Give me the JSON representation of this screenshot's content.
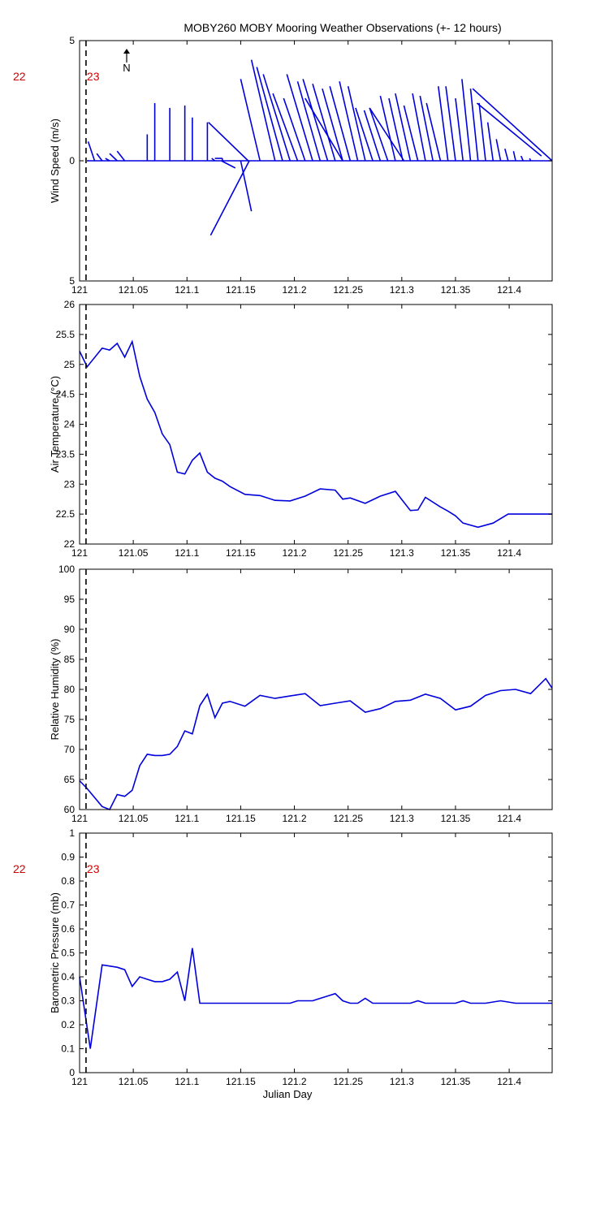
{
  "title": "MOBY260 MOBY Mooring Weather Observations (+- 12 hours)",
  "colors": {
    "series": "#0000dd",
    "hour_label": "#cc0000",
    "axis": "#000000"
  },
  "north_label": "N",
  "chart_data": [
    {
      "type": "vector",
      "name": "wind",
      "ylabel": "Wind Speed (m/s)",
      "xlabel": "Julian Day",
      "xlim": [
        121,
        121.44
      ],
      "ylim": [
        -5,
        5
      ],
      "yticks": [
        -5,
        0,
        5
      ],
      "ytick_labels": [
        "5",
        "0",
        "5"
      ],
      "xticks": [
        121,
        121.05,
        121.1,
        121.15,
        121.2,
        121.25,
        121.3,
        121.35,
        121.4
      ],
      "xtick_labels": [
        "121",
        "121.05",
        "121.1",
        "121.15",
        "121.2",
        "121.25",
        "121.3",
        "121.35",
        "121.4"
      ],
      "marker_day": 121.006,
      "hour_labels": [
        "22",
        "23"
      ],
      "vectors": [
        {
          "x": 121.007,
          "u": 0.001,
          "v": 0.0
        },
        {
          "x": 121.014,
          "u": -0.006,
          "v": 0.8
        },
        {
          "x": 121.021,
          "u": -0.005,
          "v": 0.3
        },
        {
          "x": 121.028,
          "u": -0.004,
          "v": 0.1
        },
        {
          "x": 121.035,
          "u": -0.007,
          "v": 0.3
        },
        {
          "x": 121.042,
          "u": -0.007,
          "v": 0.4
        },
        {
          "x": 121.049,
          "u": 0.0,
          "v": 0.0
        },
        {
          "x": 121.063,
          "u": 0.0,
          "v": 1.1
        },
        {
          "x": 121.07,
          "u": 0.0,
          "v": 2.4
        },
        {
          "x": 121.077,
          "u": 0.0,
          "v": 0.0
        },
        {
          "x": 121.084,
          "u": 0.0,
          "v": 2.2
        },
        {
          "x": 121.091,
          "u": 0.0,
          "v": 0.0
        },
        {
          "x": 121.098,
          "u": 0.0,
          "v": 2.3
        },
        {
          "x": 121.105,
          "u": 0.0,
          "v": 1.8
        },
        {
          "x": 121.112,
          "u": 0.0,
          "v": 0.0
        },
        {
          "x": 121.119,
          "u": 0.0,
          "v": 1.6
        },
        {
          "x": 121.126,
          "u": -0.003,
          "v": 0.1
        },
        {
          "x": 121.133,
          "u": 0.0,
          "v": 0.1
        },
        {
          "x": 121.14,
          "u": 0.0,
          "v": 0.0
        },
        {
          "x": 121.147,
          "u": 0.0,
          "v": 0.0
        },
        {
          "x": 121.154,
          "u": 0.0,
          "v": 0.0
        },
        {
          "x": 121.161,
          "u": 0.0,
          "v": 0.0
        },
        {
          "x": 121.168,
          "u": -0.018,
          "v": 3.4
        },
        {
          "x": 121.175,
          "u": 0.0,
          "v": 0.0
        },
        {
          "x": 121.182,
          "u": -0.022,
          "v": 4.2
        },
        {
          "x": 121.189,
          "u": -0.024,
          "v": 3.9
        },
        {
          "x": 121.196,
          "u": -0.025,
          "v": 3.6
        },
        {
          "x": 121.203,
          "u": -0.023,
          "v": 2.8
        },
        {
          "x": 121.21,
          "u": -0.02,
          "v": 2.6
        },
        {
          "x": 121.217,
          "u": -0.024,
          "v": 3.6
        },
        {
          "x": 121.224,
          "u": -0.021,
          "v": 3.3
        },
        {
          "x": 121.231,
          "u": -0.023,
          "v": 3.4
        },
        {
          "x": 121.238,
          "u": -0.021,
          "v": 3.2
        },
        {
          "x": 121.245,
          "u": -0.019,
          "v": 3.0
        },
        {
          "x": 121.252,
          "u": -0.019,
          "v": 3.1
        },
        {
          "x": 121.259,
          "u": -0.017,
          "v": 3.3
        },
        {
          "x": 121.266,
          "u": -0.016,
          "v": 3.1
        },
        {
          "x": 121.273,
          "u": -0.016,
          "v": 2.2
        },
        {
          "x": 121.28,
          "u": -0.015,
          "v": 2.1
        },
        {
          "x": 121.287,
          "u": -0.017,
          "v": 2.2
        },
        {
          "x": 121.294,
          "u": -0.014,
          "v": 2.7
        },
        {
          "x": 121.301,
          "u": -0.013,
          "v": 2.6
        },
        {
          "x": 121.308,
          "u": -0.014,
          "v": 2.8
        },
        {
          "x": 121.315,
          "u": -0.013,
          "v": 2.3
        },
        {
          "x": 121.322,
          "u": -0.012,
          "v": 2.8
        },
        {
          "x": 121.329,
          "u": -0.012,
          "v": 2.7
        },
        {
          "x": 121.336,
          "u": -0.013,
          "v": 2.4
        },
        {
          "x": 121.343,
          "u": -0.009,
          "v": 3.1
        },
        {
          "x": 121.35,
          "u": -0.009,
          "v": 3.1
        },
        {
          "x": 121.357,
          "u": -0.007,
          "v": 2.6
        },
        {
          "x": 121.364,
          "u": -0.008,
          "v": 3.4
        },
        {
          "x": 121.371,
          "u": -0.007,
          "v": 3.0
        },
        {
          "x": 121.378,
          "u": -0.006,
          "v": 2.4
        },
        {
          "x": 121.385,
          "u": -0.005,
          "v": 1.6
        },
        {
          "x": 121.392,
          "u": -0.004,
          "v": 0.9
        },
        {
          "x": 121.399,
          "u": -0.003,
          "v": 0.5
        },
        {
          "x": 121.406,
          "u": -0.002,
          "v": 0.4
        },
        {
          "x": 121.413,
          "u": -0.002,
          "v": 0.2
        },
        {
          "x": 121.42,
          "u": -0.001,
          "v": 0.1
        }
      ],
      "extra_segments": [
        [
          [
            121.12,
            1.6
          ],
          [
            121.157,
            0.0
          ]
        ],
        [
          [
            121.126,
            0.1
          ],
          [
            121.133,
            0.1
          ]
        ],
        [
          [
            121.132,
            0.0
          ],
          [
            121.145,
            -0.3
          ]
        ],
        [
          [
            121.122,
            -3.1
          ],
          [
            121.158,
            0.0
          ]
        ],
        [
          [
            121.15,
            0.0
          ],
          [
            121.16,
            -2.1
          ]
        ],
        [
          [
            121.21,
            2.6
          ],
          [
            121.245,
            0.0
          ]
        ],
        [
          [
            121.27,
            2.2
          ],
          [
            121.302,
            0.0
          ]
        ],
        [
          [
            121.366,
            3.0
          ],
          [
            121.44,
            0.0
          ]
        ],
        [
          [
            121.37,
            2.4
          ],
          [
            121.43,
            0.2
          ]
        ]
      ]
    },
    {
      "type": "line",
      "name": "air_temperature",
      "ylabel": "Air Temperature (°C)",
      "xlim": [
        121,
        121.44
      ],
      "ylim": [
        22,
        26
      ],
      "yticks": [
        22,
        22.5,
        23,
        23.5,
        24,
        24.5,
        25,
        25.5,
        26
      ],
      "ytick_labels": [
        "22",
        "22.5",
        "23",
        "23.5",
        "24",
        "24.5",
        "25",
        "25.5",
        "26"
      ],
      "xticks": [
        121,
        121.05,
        121.1,
        121.15,
        121.2,
        121.25,
        121.3,
        121.35,
        121.4
      ],
      "xtick_labels": [
        "121",
        "121.05",
        "121.1",
        "121.15",
        "121.2",
        "121.25",
        "121.3",
        "121.35",
        "121.4"
      ],
      "marker_day": 121.006,
      "x": [
        121.0,
        121.007,
        121.021,
        121.028,
        121.035,
        121.042,
        121.049,
        121.056,
        121.063,
        121.07,
        121.077,
        121.084,
        121.091,
        121.098,
        121.105,
        121.112,
        121.119,
        121.126,
        121.133,
        121.14,
        121.154,
        121.168,
        121.182,
        121.196,
        121.21,
        121.224,
        121.238,
        121.245,
        121.252,
        121.266,
        121.28,
        121.294,
        121.308,
        121.315,
        121.322,
        121.336,
        121.343,
        121.35,
        121.357,
        121.371,
        121.385,
        121.399,
        121.413,
        121.427,
        121.44
      ],
      "y": [
        25.22,
        24.96,
        25.27,
        25.24,
        25.35,
        25.12,
        25.38,
        24.8,
        24.42,
        24.2,
        23.84,
        23.66,
        23.2,
        23.17,
        23.4,
        23.52,
        23.2,
        23.1,
        23.05,
        22.96,
        22.83,
        22.81,
        22.73,
        22.72,
        22.8,
        22.92,
        22.9,
        22.75,
        22.77,
        22.68,
        22.8,
        22.88,
        22.56,
        22.57,
        22.78,
        22.62,
        22.55,
        22.47,
        22.35,
        22.28,
        22.35,
        22.5,
        22.5,
        22.5,
        22.5
      ]
    },
    {
      "type": "line",
      "name": "relative_humidity",
      "ylabel": "Relative Humidity (%)",
      "xlim": [
        121,
        121.44
      ],
      "ylim": [
        60,
        100
      ],
      "yticks": [
        60,
        65,
        70,
        75,
        80,
        85,
        90,
        95,
        100
      ],
      "ytick_labels": [
        "60",
        "65",
        "70",
        "75",
        "80",
        "85",
        "90",
        "95",
        "100"
      ],
      "xticks": [
        121,
        121.05,
        121.1,
        121.15,
        121.2,
        121.25,
        121.3,
        121.35,
        121.4
      ],
      "xtick_labels": [
        "121",
        "121.05",
        "121.1",
        "121.15",
        "121.2",
        "121.25",
        "121.3",
        "121.35",
        "121.4"
      ],
      "marker_day": 121.006,
      "x": [
        121.0,
        121.007,
        121.021,
        121.028,
        121.035,
        121.042,
        121.049,
        121.056,
        121.063,
        121.07,
        121.077,
        121.084,
        121.091,
        121.098,
        121.105,
        121.112,
        121.119,
        121.126,
        121.133,
        121.14,
        121.154,
        121.168,
        121.182,
        121.196,
        121.21,
        121.224,
        121.238,
        121.252,
        121.266,
        121.28,
        121.294,
        121.308,
        121.322,
        121.336,
        121.35,
        121.364,
        121.378,
        121.392,
        121.406,
        121.42,
        121.434,
        121.44
      ],
      "y": [
        64.8,
        63.5,
        60.5,
        60.0,
        62.5,
        62.2,
        63.2,
        67.3,
        69.2,
        69.0,
        69.0,
        69.2,
        70.5,
        73.1,
        72.6,
        77.3,
        79.2,
        75.3,
        77.7,
        78.0,
        77.2,
        79.0,
        78.5,
        78.9,
        79.3,
        77.3,
        77.7,
        78.1,
        76.2,
        76.8,
        78.0,
        78.2,
        79.2,
        78.5,
        76.6,
        77.2,
        79.0,
        79.8,
        80.0,
        79.3,
        81.8,
        80.2
      ]
    },
    {
      "type": "line",
      "name": "barometric_pressure",
      "ylabel": "Barometric Pressure (mb)",
      "xlim": [
        121,
        121.44
      ],
      "ylim": [
        0,
        1
      ],
      "yticks": [
        0,
        0.1,
        0.2,
        0.3,
        0.4,
        0.5,
        0.6,
        0.7,
        0.8,
        0.9,
        1
      ],
      "ytick_labels": [
        "0",
        "0.1",
        "0.2",
        "0.3",
        "0.4",
        "0.5",
        "0.6",
        "0.7",
        "0.8",
        "0.9",
        "1"
      ],
      "xticks": [
        121,
        121.05,
        121.1,
        121.15,
        121.2,
        121.25,
        121.3,
        121.35,
        121.4
      ],
      "xtick_labels": [
        "121",
        "121.05",
        "121.1",
        "121.15",
        "121.2",
        "121.25",
        "121.3",
        "121.35",
        "121.4"
      ],
      "xlabel": "Julian Day",
      "marker_day": 121.006,
      "hour_labels": [
        "22",
        "23"
      ],
      "x": [
        121.0,
        121.01,
        121.021,
        121.035,
        121.042,
        121.049,
        121.056,
        121.063,
        121.07,
        121.077,
        121.084,
        121.091,
        121.098,
        121.105,
        121.112,
        121.119,
        121.126,
        121.133,
        121.14,
        121.154,
        121.168,
        121.182,
        121.196,
        121.203,
        121.21,
        121.217,
        121.224,
        121.231,
        121.238,
        121.245,
        121.252,
        121.259,
        121.266,
        121.273,
        121.28,
        121.294,
        121.308,
        121.315,
        121.322,
        121.336,
        121.35,
        121.357,
        121.364,
        121.378,
        121.392,
        121.406,
        121.42,
        121.44
      ],
      "y": [
        0.4,
        0.1,
        0.45,
        0.44,
        0.43,
        0.36,
        0.4,
        0.39,
        0.38,
        0.38,
        0.39,
        0.42,
        0.3,
        0.52,
        0.29,
        0.29,
        0.29,
        0.29,
        0.29,
        0.29,
        0.29,
        0.29,
        0.29,
        0.3,
        0.3,
        0.3,
        0.31,
        0.32,
        0.33,
        0.3,
        0.29,
        0.29,
        0.31,
        0.29,
        0.29,
        0.29,
        0.29,
        0.3,
        0.29,
        0.29,
        0.29,
        0.3,
        0.29,
        0.29,
        0.3,
        0.29,
        0.29,
        0.29
      ]
    }
  ]
}
